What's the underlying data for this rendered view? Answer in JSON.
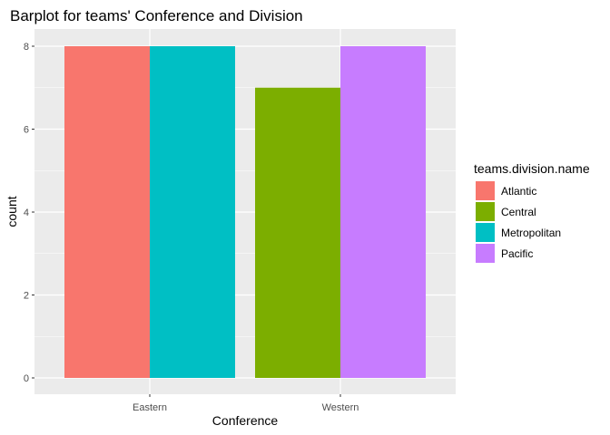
{
  "chart_data": {
    "type": "bar",
    "title": "Barplot for teams' Conference and Division",
    "xlabel": "Conference",
    "ylabel": "count",
    "categories": [
      "Eastern",
      "Western"
    ],
    "ylim": [
      0,
      8.4
    ],
    "yticks": [
      0,
      2,
      4,
      6,
      8
    ],
    "grid": true,
    "legend": {
      "title": "teams.division.name",
      "placement": "right"
    },
    "series": [
      {
        "name": "Atlantic",
        "color": "#F8766D",
        "values": [
          8,
          null
        ]
      },
      {
        "name": "Central",
        "color": "#7CAE00",
        "values": [
          null,
          7
        ]
      },
      {
        "name": "Metropolitan",
        "color": "#00BFC4",
        "values": [
          8,
          null
        ]
      },
      {
        "name": "Pacific",
        "color": "#C77CFF",
        "values": [
          null,
          8
        ]
      }
    ],
    "bars": [
      {
        "category": "Eastern",
        "series": "Atlantic",
        "value": 8
      },
      {
        "category": "Eastern",
        "series": "Metropolitan",
        "value": 8
      },
      {
        "category": "Western",
        "series": "Central",
        "value": 7
      },
      {
        "category": "Western",
        "series": "Pacific",
        "value": 8
      }
    ]
  }
}
